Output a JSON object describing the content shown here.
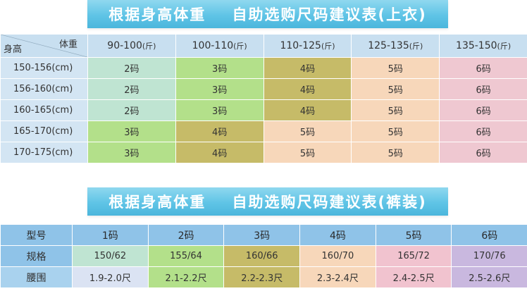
{
  "colors": {
    "banner": "#5fc4e6",
    "size2": "#bfe4d2",
    "size3": "#b3e08a",
    "size4": "#c6bb68",
    "size5": "#f7d7ba",
    "size6": "#efc8d1",
    "waist1": "#dbe3f3",
    "waist6": "#c9b8df",
    "header_blue": "#8fc3e8"
  },
  "top_banner": {
    "left": "根据身高体重",
    "right": "自助选购尺码建议表(上衣)"
  },
  "top_table": {
    "corner_weight": "体重",
    "corner_height": "身高",
    "weight_cols": [
      {
        "range": "90-100",
        "unit": "(斤)"
      },
      {
        "range": "100-110",
        "unit": "(斤)"
      },
      {
        "range": "110-125",
        "unit": "(斤)"
      },
      {
        "range": "125-135",
        "unit": "(斤)"
      },
      {
        "range": "135-150",
        "unit": "(斤)"
      }
    ],
    "rows": [
      {
        "height": "150-156(cm)",
        "cells": [
          "2码",
          "3码",
          "4码",
          "5码",
          "6码"
        ]
      },
      {
        "height": "156-160(cm)",
        "cells": [
          "2码",
          "3码",
          "4码",
          "5码",
          "6码"
        ]
      },
      {
        "height": "160-165(cm)",
        "cells": [
          "2码",
          "3码",
          "4码",
          "5码",
          "6码"
        ]
      },
      {
        "height": "165-170(cm)",
        "cells": [
          "3码",
          "4码",
          "5码",
          "5码",
          "6码"
        ]
      },
      {
        "height": "170-175(cm)",
        "cells": [
          "3码",
          "4码",
          "5码",
          "5码",
          "6码"
        ]
      }
    ]
  },
  "bottom_banner": {
    "left": "根据身高体重",
    "right": "自助选购尺码建议表(裤装)"
  },
  "bottom_table": {
    "model_label": "型号",
    "sizes": [
      "1码",
      "2码",
      "3码",
      "4码",
      "5码",
      "6码"
    ],
    "spec_label": "规格",
    "specs": [
      "150/62",
      "155/64",
      "160/66",
      "160/70",
      "165/72",
      "170/76"
    ],
    "waist_label": "腰围",
    "waists": [
      "1.9-2.0尺",
      "2.1-2.2尺",
      "2.2-2.3尺",
      "2.3-2.4尺",
      "2.4-2.5尺",
      "2.5-2.6尺"
    ]
  }
}
